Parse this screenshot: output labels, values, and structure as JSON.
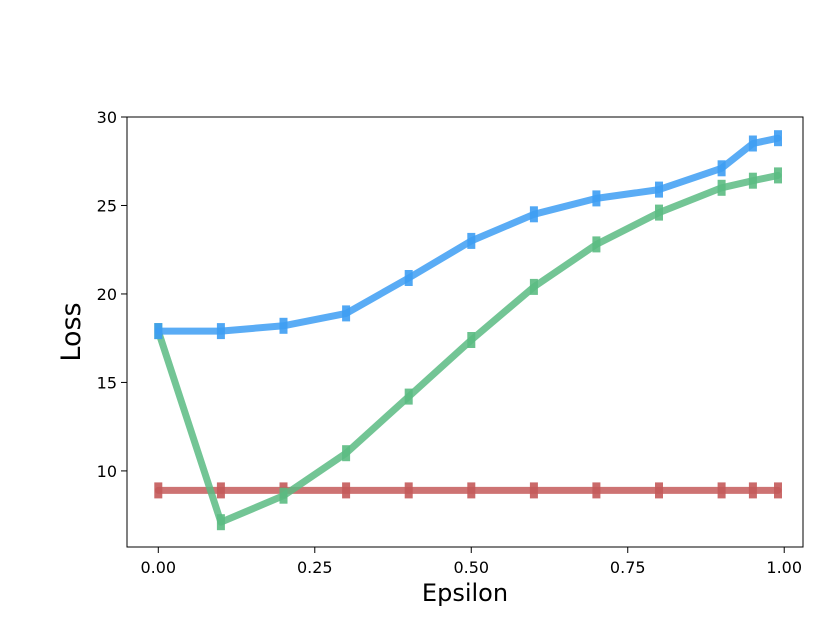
{
  "chart_data": {
    "type": "line",
    "title": "",
    "xlabel": "Epsilon",
    "ylabel": "Loss",
    "xlim": [
      -0.05,
      1.03
    ],
    "ylim": [
      5.7,
      30.0
    ],
    "xticks": [
      0.0,
      0.25,
      0.5,
      0.75,
      1.0
    ],
    "xtick_labels": [
      "0.00",
      "0.25",
      "0.50",
      "0.75",
      "1.00"
    ],
    "yticks": [
      10,
      15,
      20,
      25,
      30
    ],
    "ytick_labels": [
      "10",
      "15",
      "20",
      "25",
      "30"
    ],
    "grid": false,
    "legend": "none",
    "x": [
      0.0,
      0.1,
      0.2,
      0.3,
      0.4,
      0.5,
      0.6,
      0.7,
      0.8,
      0.9,
      0.95,
      0.99
    ],
    "series": [
      {
        "color": "#3d9df3",
        "values": [
          17.9,
          17.9,
          18.2,
          18.9,
          20.9,
          23.0,
          24.5,
          25.4,
          25.9,
          27.1,
          28.5,
          28.8
        ]
      },
      {
        "color": "#5bbb82",
        "values": [
          17.9,
          7.1,
          8.6,
          11.0,
          14.2,
          17.4,
          20.4,
          22.8,
          24.6,
          26.0,
          26.4,
          26.7
        ]
      },
      {
        "color": "#c45a5a",
        "values": [
          8.9,
          8.9,
          8.9,
          8.9,
          8.9,
          8.9,
          8.9,
          8.9,
          8.9,
          8.9,
          8.9,
          8.9
        ]
      }
    ]
  }
}
